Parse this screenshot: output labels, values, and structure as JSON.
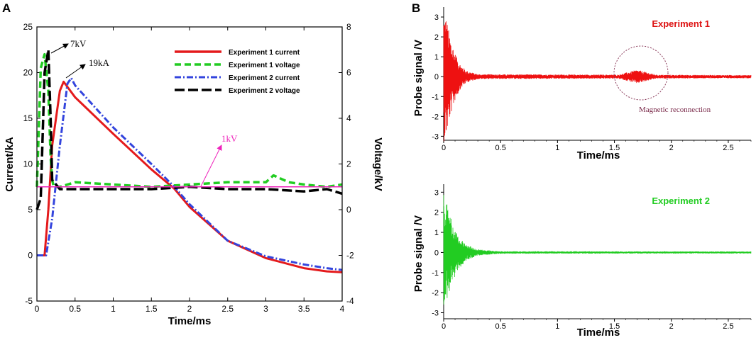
{
  "colors": {
    "exp1_current": "#e41a1c",
    "exp1_voltage": "#22cc22",
    "exp2_current": "#3344dd",
    "exp2_voltage": "#000000",
    "line_1kv": "#ee22bb",
    "probe1": "#ee1111",
    "probe2": "#22cc22",
    "reconnect": "#8a3a5a"
  },
  "chart_data": [
    {
      "panel": "A",
      "type": "line",
      "xlabel": "Time/ms",
      "ylabel": "Current/kA",
      "y2label": "Voltage/kV",
      "xlim": [
        0,
        4
      ],
      "ylim": [
        -5,
        25
      ],
      "y2lim": [
        -4,
        8
      ],
      "xticks": [
        "0",
        "0.5",
        "1",
        "1.5",
        "2",
        "2.5",
        "3",
        "3.5",
        "4"
      ],
      "yticks": [
        "-5",
        "0",
        "5",
        "10",
        "15",
        "20",
        "25"
      ],
      "y2ticks": [
        "-4",
        "-2",
        "0",
        "2",
        "4",
        "6",
        "8"
      ],
      "series": [
        {
          "name": "Experiment 1 current",
          "axis": "left",
          "x": [
            0,
            0.1,
            0.15,
            0.2,
            0.3,
            0.35,
            0.5,
            1.0,
            1.5,
            1.8,
            2.0,
            2.5,
            3.0,
            3.5,
            3.8,
            4.0
          ],
          "y": [
            0,
            0,
            5,
            12,
            18,
            19,
            17.3,
            13.3,
            9.4,
            7.3,
            5.3,
            1.6,
            -0.3,
            -1.4,
            -1.75,
            -1.85
          ]
        },
        {
          "name": "Experiment 1 voltage",
          "axis": "right",
          "x": [
            0,
            0.05,
            0.1,
            0.15,
            0.18,
            0.2,
            0.22,
            0.3,
            0.5,
            1.0,
            1.5,
            2.0,
            2.5,
            3.0,
            3.1,
            3.3,
            3.5,
            3.8,
            4.0
          ],
          "y": [
            1,
            6.2,
            6.8,
            5.2,
            2.3,
            1.3,
            1.0,
            1.0,
            1.2,
            1.1,
            1.0,
            1.1,
            1.2,
            1.2,
            1.5,
            1.2,
            1.1,
            1.0,
            1.1
          ]
        },
        {
          "name": "Experiment 2 current",
          "axis": "left",
          "x": [
            0,
            0.12,
            0.2,
            0.3,
            0.4,
            0.45,
            0.5,
            1.0,
            1.5,
            1.8,
            2.0,
            2.5,
            3.0,
            3.5,
            3.8,
            4.0
          ],
          "y": [
            0,
            0,
            4,
            12,
            18.8,
            19.4,
            18.6,
            14.0,
            10.0,
            7.5,
            5.6,
            1.6,
            -0.1,
            -1.0,
            -1.4,
            -1.6
          ]
        },
        {
          "name": "Experiment 2 voltage",
          "axis": "right",
          "x": [
            0,
            0.05,
            0.1,
            0.15,
            0.18,
            0.2,
            0.3,
            0.5,
            1.0,
            1.5,
            2.0,
            2.5,
            3.0,
            3.5,
            3.8,
            4.0
          ],
          "y": [
            0,
            0.5,
            6.0,
            7.0,
            4.0,
            1.3,
            0.9,
            0.9,
            0.9,
            0.9,
            1.0,
            0.9,
            0.9,
            0.8,
            0.9,
            0.7
          ]
        },
        {
          "name": "1kV",
          "axis": "right",
          "x": [
            0,
            4
          ],
          "y": [
            1,
            1
          ]
        }
      ],
      "legend_position": "top-right",
      "annotations": [
        "7kV",
        "19kA",
        "1kV"
      ]
    },
    {
      "panel": "B",
      "type": "line",
      "subplots": [
        {
          "title": "Experiment 1",
          "xlabel": "Time/ms",
          "ylabel": "Probe signal /V",
          "xlim": [
            0,
            2.7
          ],
          "ylim": [
            -3.2,
            3.5
          ],
          "xticks": [
            "0",
            "0.5",
            "1",
            "1.5",
            "2",
            "2.5"
          ],
          "yticks": [
            "-3",
            "-2",
            "-1",
            "0",
            "1",
            "2",
            "3"
          ],
          "envelope_amp_V": [
            3.3,
            3.1,
            2.2,
            1.2,
            0.6,
            0.3,
            0.12,
            0.08
          ],
          "envelope_t_ms": [
            0,
            0.02,
            0.05,
            0.1,
            0.15,
            0.2,
            0.3,
            2.7
          ],
          "burst_t_ms": [
            1.5,
            1.9
          ],
          "burst_amp_V": 0.3,
          "annotation": "Magnetic reconnection"
        },
        {
          "title": "Experiment 2",
          "xlabel": "Time/ms",
          "ylabel": "Probe signal /V",
          "xlim": [
            0,
            2.7
          ],
          "ylim": [
            -3.3,
            3.4
          ],
          "xticks": [
            "0",
            "0.5",
            "1",
            "1.5",
            "2",
            "2.5"
          ],
          "yticks": [
            "-3",
            "-2",
            "-1",
            "0",
            "1",
            "2",
            "3"
          ],
          "envelope_amp_V": [
            3.0,
            2.6,
            1.8,
            0.9,
            0.4,
            0.15,
            0.06,
            0.05
          ],
          "envelope_t_ms": [
            0,
            0.02,
            0.06,
            0.12,
            0.2,
            0.3,
            0.5,
            2.7
          ]
        }
      ]
    }
  ]
}
